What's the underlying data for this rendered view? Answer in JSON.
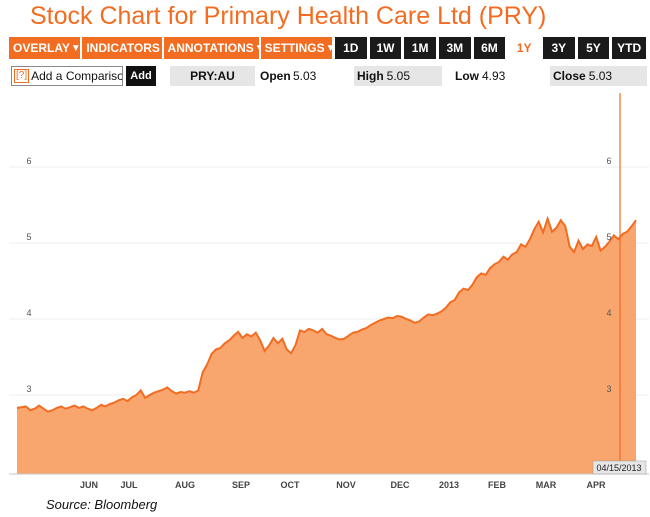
{
  "title": "Stock Chart for Primary Health Care Ltd (PRY)",
  "toolbar": {
    "dropdowns": [
      {
        "label": "OVERLAY",
        "arrow": "▼"
      },
      {
        "label": "INDICATORS",
        "arrow": "▼"
      },
      {
        "label": "ANNOTATIONS",
        "arrow": "▼"
      },
      {
        "label": "SETTINGS",
        "arrow": "▼"
      }
    ],
    "ranges": [
      "1D",
      "1W",
      "1M",
      "3M",
      "6M",
      "1Y",
      "3Y",
      "5Y",
      "YTD"
    ],
    "active_range": "1Y"
  },
  "info": {
    "comparison_icon": "[?]",
    "comparison_placeholder": "Add a Comparison",
    "add_label": "Add",
    "ticker": "PRY:AU",
    "open_label": "Open",
    "open_value": "5.03",
    "high_label": "High",
    "high_value": "5.05",
    "low_label": "Low",
    "low_value": "4.93",
    "close_label": "Close",
    "close_value": "5.03"
  },
  "colors": {
    "accent": "#f26c21",
    "area_fill": "#f9a56e",
    "line": "#f26c21"
  },
  "chart_data": {
    "type": "area",
    "title": "",
    "xlabel": "",
    "ylabel": "",
    "ylim": [
      2.0,
      6.8
    ],
    "yticks": [
      "3",
      "4",
      "5",
      "6"
    ],
    "xticks": [
      "JUN",
      "JUL",
      "AUG",
      "SEP",
      "OCT",
      "NOV",
      "DEC",
      "2013",
      "FEB",
      "MAR",
      "APR"
    ],
    "cursor_date": "04/15/2013",
    "grid": true,
    "series": [
      {
        "values": [
          2.83,
          2.84,
          2.85,
          2.8,
          2.82,
          2.86,
          2.82,
          2.78,
          2.8,
          2.83,
          2.85,
          2.82,
          2.84,
          2.86,
          2.83,
          2.85,
          2.82,
          2.8,
          2.83,
          2.87,
          2.85,
          2.88,
          2.9,
          2.93,
          2.95,
          2.92,
          2.97,
          3.0,
          3.06,
          2.96,
          3.0,
          3.03,
          3.05,
          3.07,
          3.1,
          3.05,
          3.02,
          3.04,
          3.03,
          3.05,
          3.03,
          3.06,
          3.3,
          3.4,
          3.54,
          3.6,
          3.62,
          3.68,
          3.72,
          3.78,
          3.83,
          3.75,
          3.8,
          3.77,
          3.82,
          3.72,
          3.58,
          3.65,
          3.75,
          3.68,
          3.74,
          3.6,
          3.55,
          3.66,
          3.85,
          3.83,
          3.87,
          3.85,
          3.82,
          3.87,
          3.8,
          3.78,
          3.75,
          3.73,
          3.74,
          3.78,
          3.82,
          3.83,
          3.86,
          3.88,
          3.92,
          3.95,
          3.98,
          4.0,
          4.02,
          4.01,
          4.04,
          4.03,
          4.0,
          3.98,
          3.95,
          3.97,
          4.02,
          4.06,
          4.05,
          4.07,
          4.1,
          4.15,
          4.22,
          4.25,
          4.35,
          4.4,
          4.38,
          4.45,
          4.55,
          4.6,
          4.58,
          4.67,
          4.72,
          4.75,
          4.82,
          4.78,
          4.85,
          4.88,
          4.98,
          4.95,
          5.05,
          5.18,
          5.28,
          5.14,
          5.32,
          5.15,
          5.2,
          5.3,
          5.22,
          4.95,
          4.88,
          5.03,
          4.92,
          4.98,
          4.96,
          5.08,
          4.9,
          4.95,
          5.02,
          5.1,
          5.05,
          5.12,
          5.15,
          5.22,
          5.3
        ]
      }
    ]
  },
  "source": "Source: Bloomberg"
}
